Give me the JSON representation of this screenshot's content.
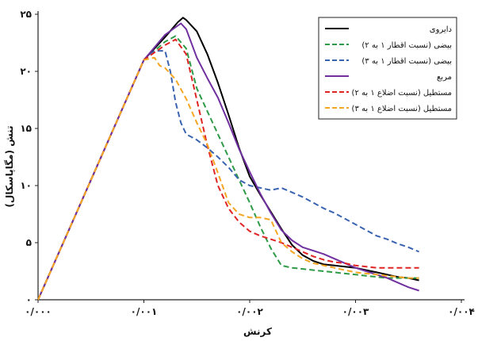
{
  "chart_data": {
    "type": "line",
    "xlabel": "کرنش",
    "ylabel": "تنش (مگاپاسکال)",
    "xlim": [
      0,
      0.004
    ],
    "ylim": [
      0,
      25
    ],
    "x_ticks": [
      "۰/۰۰۰",
      "۰/۰۰۱",
      "۰/۰۰۲",
      "۰/۰۰۳",
      "۰/۰۰۴"
    ],
    "y_ticks": [
      "۰",
      "۵",
      "۱۰",
      "۱۵",
      "۲۰",
      "۲۵"
    ],
    "legend_position": "top-right",
    "series": [
      {
        "name": "دایروی",
        "color": "#000000",
        "style": "solid",
        "points": [
          [
            0,
            0
          ],
          [
            0.0005,
            10.5
          ],
          [
            0.001,
            21
          ],
          [
            0.0012,
            23
          ],
          [
            0.00132,
            24.3
          ],
          [
            0.00137,
            24.7
          ],
          [
            0.0014,
            24.5
          ],
          [
            0.0015,
            23.5
          ],
          [
            0.0016,
            21.5
          ],
          [
            0.0017,
            19
          ],
          [
            0.0018,
            16.2
          ],
          [
            0.0019,
            13.3
          ],
          [
            0.002,
            10.8
          ],
          [
            0.0021,
            9.2
          ],
          [
            0.0022,
            7.7
          ],
          [
            0.0023,
            6.2
          ],
          [
            0.0024,
            4.8
          ],
          [
            0.0025,
            3.9
          ],
          [
            0.0026,
            3.4
          ],
          [
            0.0027,
            3.1
          ],
          [
            0.0028,
            3.0
          ],
          [
            0.0029,
            2.9
          ],
          [
            0.003,
            2.8
          ],
          [
            0.0031,
            2.6
          ],
          [
            0.0032,
            2.4
          ],
          [
            0.0033,
            2.2
          ],
          [
            0.0034,
            2.0
          ],
          [
            0.0035,
            1.9
          ],
          [
            0.0036,
            1.7
          ]
        ]
      },
      {
        "name": "بیضی (نسبت اقطار ۱ به ۲)",
        "color": "#2e9b47",
        "style": "dashed",
        "points": [
          [
            0,
            0
          ],
          [
            0.0005,
            10.5
          ],
          [
            0.001,
            21
          ],
          [
            0.0012,
            22.6
          ],
          [
            0.0013,
            23.1
          ],
          [
            0.0014,
            22
          ],
          [
            0.0015,
            18.5
          ],
          [
            0.0016,
            16.5
          ],
          [
            0.0017,
            14.5
          ],
          [
            0.0018,
            12.5
          ],
          [
            0.0019,
            10.5
          ],
          [
            0.002,
            8.5
          ],
          [
            0.0021,
            6.4
          ],
          [
            0.0022,
            4.5
          ],
          [
            0.0023,
            3.0
          ],
          [
            0.0024,
            2.8
          ],
          [
            0.0025,
            2.7
          ],
          [
            0.0026,
            2.6
          ],
          [
            0.0027,
            2.5
          ],
          [
            0.0028,
            2.4
          ],
          [
            0.0029,
            2.3
          ],
          [
            0.003,
            2.2
          ],
          [
            0.0031,
            2.1
          ],
          [
            0.0032,
            2.0
          ],
          [
            0.0033,
            1.9
          ],
          [
            0.0034,
            1.9
          ],
          [
            0.0035,
            1.9
          ],
          [
            0.0036,
            1.9
          ]
        ]
      },
      {
        "name": "بیضی (نسبت اقطار ۱ به ۳)",
        "color": "#3a63b0",
        "style": "dashed",
        "points": [
          [
            0,
            0
          ],
          [
            0.0005,
            10.5
          ],
          [
            0.001,
            21
          ],
          [
            0.0011,
            21.8
          ],
          [
            0.0012,
            21.8
          ],
          [
            0.00125,
            20
          ],
          [
            0.0013,
            17.3
          ],
          [
            0.00135,
            15.5
          ],
          [
            0.0014,
            14.5
          ],
          [
            0.0015,
            14
          ],
          [
            0.0016,
            13.3
          ],
          [
            0.0017,
            12.5
          ],
          [
            0.0018,
            11.6
          ],
          [
            0.0019,
            10.5
          ],
          [
            0.002,
            10.0
          ],
          [
            0.0021,
            9.8
          ],
          [
            0.0022,
            9.6
          ],
          [
            0.0023,
            9.8
          ],
          [
            0.0024,
            9.4
          ],
          [
            0.0025,
            9.0
          ],
          [
            0.0026,
            8.5
          ],
          [
            0.0027,
            8.0
          ],
          [
            0.0028,
            7.6
          ],
          [
            0.0029,
            7.1
          ],
          [
            0.003,
            6.6
          ],
          [
            0.0031,
            6.1
          ],
          [
            0.0032,
            5.6
          ],
          [
            0.0033,
            5.3
          ],
          [
            0.0034,
            4.9
          ],
          [
            0.0035,
            4.6
          ],
          [
            0.0036,
            4.2
          ]
        ]
      },
      {
        "name": "مربع",
        "color": "#7030a0",
        "style": "solid",
        "points": [
          [
            0,
            0
          ],
          [
            0.0005,
            10.5
          ],
          [
            0.001,
            21
          ],
          [
            0.0012,
            23.2
          ],
          [
            0.00135,
            24.2
          ],
          [
            0.0014,
            23.7
          ],
          [
            0.0015,
            21.2
          ],
          [
            0.0016,
            19.4
          ],
          [
            0.0017,
            17.7
          ],
          [
            0.0018,
            15.5
          ],
          [
            0.0019,
            13.2
          ],
          [
            0.002,
            11.2
          ],
          [
            0.0021,
            9.3
          ],
          [
            0.0022,
            7.6
          ],
          [
            0.0023,
            6.1
          ],
          [
            0.0024,
            5.2
          ],
          [
            0.0025,
            4.6
          ],
          [
            0.0026,
            4.3
          ],
          [
            0.0027,
            4.0
          ],
          [
            0.0028,
            3.6
          ],
          [
            0.0029,
            3.2
          ],
          [
            0.003,
            2.8
          ],
          [
            0.0031,
            2.5
          ],
          [
            0.0032,
            2.2
          ],
          [
            0.0033,
            1.9
          ],
          [
            0.0034,
            1.5
          ],
          [
            0.0035,
            1.1
          ],
          [
            0.0036,
            0.8
          ]
        ]
      },
      {
        "name": "مستطیل (نسبت اضلاع ۱ به ۲)",
        "color": "#e02424",
        "style": "dashed",
        "points": [
          [
            0,
            0
          ],
          [
            0.0005,
            10.5
          ],
          [
            0.001,
            21
          ],
          [
            0.0012,
            22.3
          ],
          [
            0.0013,
            22.8
          ],
          [
            0.0014,
            21.5
          ],
          [
            0.0015,
            17.5
          ],
          [
            0.0016,
            13.5
          ],
          [
            0.0017,
            10
          ],
          [
            0.0018,
            8.0
          ],
          [
            0.0019,
            6.8
          ],
          [
            0.002,
            6.0
          ],
          [
            0.0021,
            5.6
          ],
          [
            0.0022,
            5.3
          ],
          [
            0.0023,
            5.0
          ],
          [
            0.0024,
            4.6
          ],
          [
            0.0025,
            4.2
          ],
          [
            0.0026,
            3.8
          ],
          [
            0.0027,
            3.5
          ],
          [
            0.0028,
            3.3
          ],
          [
            0.0029,
            3.2
          ],
          [
            0.003,
            3.0
          ],
          [
            0.0031,
            2.9
          ],
          [
            0.0032,
            2.8
          ],
          [
            0.0033,
            2.8
          ],
          [
            0.0034,
            2.8
          ],
          [
            0.0035,
            2.8
          ],
          [
            0.0036,
            2.8
          ]
        ]
      },
      {
        "name": "مستطیل (نسبت اضلاع ۱ به ۳)",
        "color": "#f5a623",
        "style": "dashed",
        "points": [
          [
            0,
            0
          ],
          [
            0.0005,
            10.5
          ],
          [
            0.001,
            21
          ],
          [
            0.0011,
            21.2
          ],
          [
            0.00115,
            20.5
          ],
          [
            0.0012,
            20.3
          ],
          [
            0.0013,
            19.3
          ],
          [
            0.0014,
            17.6
          ],
          [
            0.0015,
            15.5
          ],
          [
            0.0016,
            13.6
          ],
          [
            0.0017,
            11.1
          ],
          [
            0.0018,
            8.5
          ],
          [
            0.0019,
            7.5
          ],
          [
            0.002,
            7.2
          ],
          [
            0.0021,
            7.2
          ],
          [
            0.0022,
            7.0
          ],
          [
            0.0023,
            5.0
          ],
          [
            0.0024,
            4.2
          ],
          [
            0.0025,
            3.6
          ],
          [
            0.0026,
            3.2
          ],
          [
            0.0027,
            3.0
          ],
          [
            0.0028,
            2.8
          ],
          [
            0.0029,
            2.6
          ],
          [
            0.003,
            2.4
          ],
          [
            0.0031,
            2.3
          ],
          [
            0.0032,
            2.2
          ],
          [
            0.0033,
            2.1
          ],
          [
            0.0034,
            2.0
          ],
          [
            0.0035,
            1.9
          ],
          [
            0.0036,
            1.9
          ]
        ]
      }
    ]
  }
}
